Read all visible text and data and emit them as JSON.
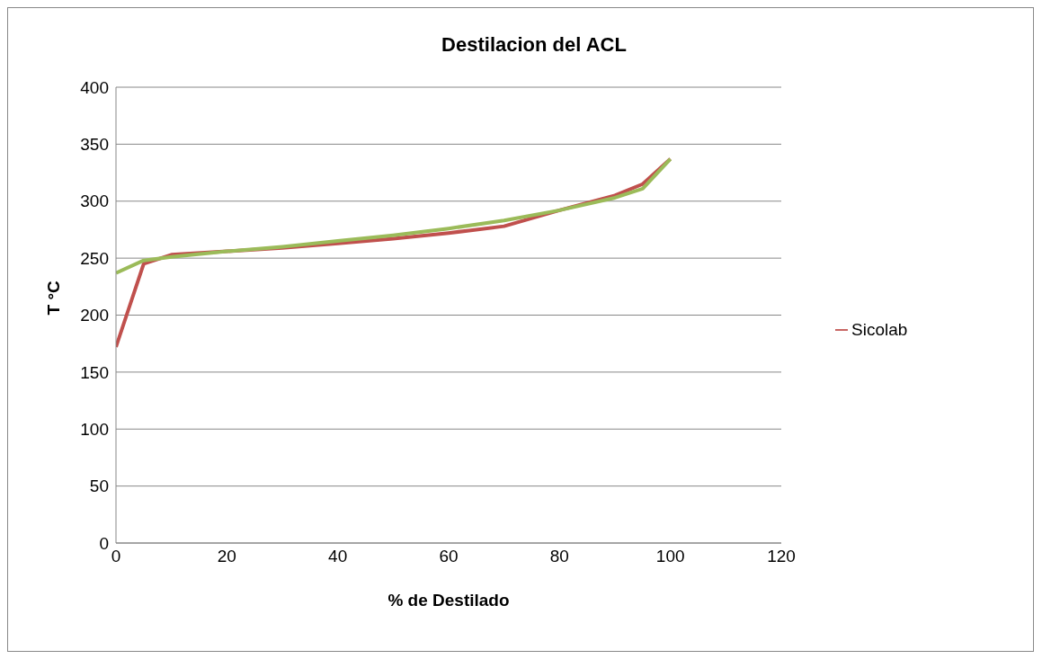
{
  "chart_data": {
    "type": "line",
    "title": "Destilacion del ACL",
    "xlabel": "% de Destilado",
    "ylabel": "T °C",
    "x": [
      0,
      5,
      10,
      20,
      30,
      40,
      50,
      60,
      70,
      80,
      90,
      95,
      100
    ],
    "series": [
      {
        "name": "Sicolab",
        "color": "#c0504d",
        "values": [
          172,
          245,
          253,
          256,
          259,
          263,
          267,
          272,
          278,
          292,
          305,
          315,
          337
        ]
      },
      {
        "color": "#9bbb59",
        "values": [
          237,
          248,
          251,
          256,
          260,
          265,
          270,
          276,
          283,
          292,
          303,
          311,
          337
        ]
      }
    ],
    "xlim": [
      0,
      120
    ],
    "xticks": [
      0,
      20,
      40,
      60,
      80,
      100,
      120
    ],
    "ylim": [
      0,
      400
    ],
    "yticks": [
      0,
      50,
      100,
      150,
      200,
      250,
      300,
      350,
      400
    ],
    "grid": "y",
    "legend": "right",
    "marker": "none"
  }
}
